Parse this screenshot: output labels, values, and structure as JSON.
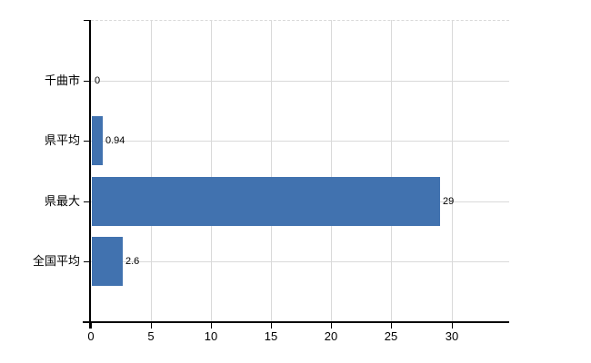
{
  "chart": {
    "background": "#ffffff",
    "bar_color": "#4172af",
    "gridline_color": "#d9d9d9",
    "axis_color": "#000000",
    "label_color": "#000000"
  },
  "chart_data": {
    "type": "bar",
    "orientation": "horizontal",
    "title": "",
    "xlabel": "",
    "ylabel": "",
    "categories": [
      "千曲市",
      "県平均",
      "県最大",
      "全国平均"
    ],
    "values": [
      0,
      0.94,
      29,
      2.6
    ],
    "value_labels": [
      "0",
      "0.94",
      "29",
      "2.6"
    ],
    "x_tick_values": [
      0,
      5,
      10,
      15,
      20,
      25,
      30
    ],
    "x_tick_labels": [
      "0",
      "5",
      "10",
      "15",
      "20",
      "25",
      "30"
    ],
    "xlim": [
      0,
      34.8
    ],
    "grid": true,
    "legend": false
  }
}
